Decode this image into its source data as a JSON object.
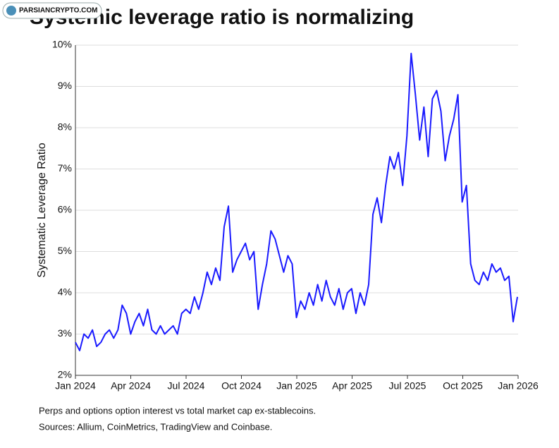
{
  "watermark": "PARSIANCRYPTO.COM",
  "chart_data": {
    "type": "line",
    "title": "Systemic leverage ratio is normalizing",
    "y_label": "Systematic Leverage Ratio",
    "notes": [
      "Perps and options option interest vs total market cap ex-stablecoins.",
      "Sources: Allium, CoinMetrics, TradingView and Coinbase."
    ],
    "color": "#1a1aff",
    "grid": true,
    "xlim": [
      2024,
      2026
    ],
    "ylim": [
      2,
      10
    ],
    "xticks": [
      {
        "value": 2024,
        "label": "Jan 2024"
      },
      {
        "value": 2024.25,
        "label": "Apr 2024"
      },
      {
        "value": 2024.5,
        "label": "Jul 2024"
      },
      {
        "value": 2024.75,
        "label": "Oct 2024"
      },
      {
        "value": 2025,
        "label": "Jan 2025"
      },
      {
        "value": 2025.25,
        "label": "Apr 2025"
      },
      {
        "value": 2025.5,
        "label": "Jul 2025"
      },
      {
        "value": 2025.75,
        "label": "Oct 2025"
      },
      {
        "value": 2026,
        "label": "Jan 2026"
      }
    ],
    "yticks": [
      {
        "value": 2,
        "label": "2%"
      },
      {
        "value": 3,
        "label": "3%"
      },
      {
        "value": 4,
        "label": "4%"
      },
      {
        "value": 5,
        "label": "5%"
      },
      {
        "value": 6,
        "label": "6%"
      },
      {
        "value": 7,
        "label": "7%"
      },
      {
        "value": 8,
        "label": "8%"
      },
      {
        "value": 9,
        "label": "9%"
      },
      {
        "value": 10,
        "label": "10%"
      }
    ],
    "x": [
      2024.0,
      2024.0192,
      2024.0384,
      2024.0576,
      2024.0768,
      2024.096,
      2024.1152,
      2024.1344,
      2024.1536,
      2024.1728,
      2024.192,
      2024.2112,
      2024.2304,
      2024.2496,
      2024.2688,
      2024.288,
      2024.3072,
      2024.3264,
      2024.3456,
      2024.3648,
      2024.384,
      2024.4032,
      2024.4224,
      2024.4416,
      2024.4608,
      2024.48,
      2024.4992,
      2024.5184,
      2024.5376,
      2024.5568,
      2024.576,
      2024.5952,
      2024.6144,
      2024.6336,
      2024.6528,
      2024.672,
      2024.6912,
      2024.7104,
      2024.7296,
      2024.7488,
      2024.768,
      2024.7872,
      2024.8064,
      2024.8256,
      2024.8448,
      2024.864,
      2024.8832,
      2024.9024,
      2024.9216,
      2024.9408,
      2024.96,
      2024.9792,
      2024.9984,
      2025.0176,
      2025.0368,
      2025.056,
      2025.0752,
      2025.0944,
      2025.1136,
      2025.1328,
      2025.152,
      2025.1712,
      2025.1904,
      2025.2096,
      2025.2288,
      2025.248,
      2025.2672,
      2025.2864,
      2025.3056,
      2025.3248,
      2025.344,
      2025.3632,
      2025.3824,
      2025.4016,
      2025.4208,
      2025.44,
      2025.4592,
      2025.4784,
      2025.4976,
      2025.5168,
      2025.536,
      2025.5552,
      2025.5744,
      2025.5936,
      2025.6128,
      2025.632,
      2025.6512,
      2025.6704,
      2025.6896,
      2025.7088,
      2025.728,
      2025.7472,
      2025.7664,
      2025.7856,
      2025.8048,
      2025.824,
      2025.8432,
      2025.8624,
      2025.8816,
      2025.9008,
      2025.92,
      2025.9392,
      2025.9584,
      2025.9776,
      2025.9968
    ],
    "values": [
      2.8,
      2.6,
      3.0,
      2.9,
      3.1,
      2.7,
      2.8,
      3.0,
      3.1,
      2.9,
      3.1,
      3.7,
      3.5,
      3.0,
      3.3,
      3.5,
      3.2,
      3.6,
      3.1,
      3.0,
      3.2,
      3.0,
      3.1,
      3.2,
      3.0,
      3.5,
      3.6,
      3.5,
      3.9,
      3.6,
      4.0,
      4.5,
      4.2,
      4.6,
      4.3,
      5.6,
      6.1,
      4.5,
      4.8,
      5.0,
      5.2,
      4.8,
      5.0,
      3.6,
      4.2,
      4.7,
      5.5,
      5.3,
      4.9,
      4.5,
      4.9,
      4.7,
      3.4,
      3.8,
      3.6,
      4.0,
      3.7,
      4.2,
      3.8,
      4.3,
      3.9,
      3.7,
      4.1,
      3.6,
      4.0,
      4.1,
      3.5,
      4.0,
      3.7,
      4.2,
      5.9,
      6.3,
      5.7,
      6.6,
      7.3,
      7.0,
      7.4,
      6.6,
      7.8,
      9.8,
      8.8,
      7.7,
      8.5,
      7.3,
      8.7,
      8.9,
      8.4,
      7.2,
      7.8,
      8.2,
      8.8,
      6.2,
      6.6,
      4.7,
      4.3,
      4.2,
      4.5,
      4.3,
      4.7,
      4.5,
      4.6,
      4.3,
      4.4,
      3.3,
      3.9
    ]
  }
}
